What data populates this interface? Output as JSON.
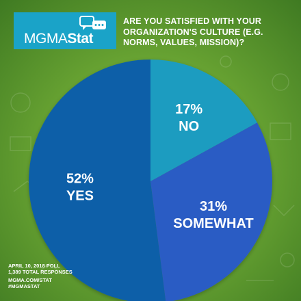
{
  "logo": {
    "brand": "MGMA",
    "stat": "Stat"
  },
  "question": "ARE YOU SATISFIED WITH YOUR ORGANIZATION'S CULTURE (E.G. NORMS, VALUES, MISSION)?",
  "chart_data": {
    "type": "pie",
    "title": "ARE YOU SATISFIED WITH YOUR ORGANIZATION'S CULTURE (E.G. NORMS, VALUES, MISSION)?",
    "categories": [
      "NO",
      "SOMEWHAT",
      "YES"
    ],
    "values": [
      17,
      31,
      52
    ],
    "labels": [
      "17%",
      "31%",
      "52%"
    ],
    "colors": [
      "#1e9cc0",
      "#2b5cc4",
      "#0d5ea8"
    ],
    "legend": "none"
  },
  "footer": {
    "poll_date": "APRIL 10, 2018 POLL",
    "responses": "1,389 TOTAL RESPONSES",
    "url": "MGMA.COM/STAT",
    "hashtag": "#MGMASTAT"
  },
  "colors": {
    "logo_bg": "#1aa3c8",
    "background": "#6aa533"
  }
}
